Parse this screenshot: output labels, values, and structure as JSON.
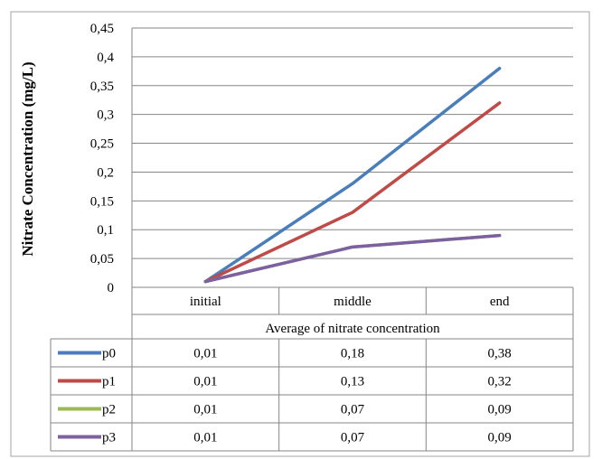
{
  "chart_data": {
    "type": "line",
    "title": "",
    "xlabel": "Average of nitrate concentration",
    "ylabel": "Nitrate Concentration (mg/L)",
    "categories": [
      "initial",
      "middle",
      "end"
    ],
    "ylim": [
      0,
      0.45
    ],
    "yticks": [
      "0",
      "0,05",
      "0,1",
      "0,15",
      "0,2",
      "0,25",
      "0,3",
      "0,35",
      "0,4",
      "0,45"
    ],
    "grid": true,
    "legend": "data-table",
    "series": [
      {
        "name": "p0",
        "color": "#4a7ebb",
        "values": [
          0.01,
          0.18,
          0.38
        ],
        "labels": [
          "0,01",
          "0,18",
          "0,38"
        ]
      },
      {
        "name": "p1",
        "color": "#be4b48",
        "values": [
          0.01,
          0.13,
          0.32
        ],
        "labels": [
          "0,01",
          "0,13",
          "0,32"
        ]
      },
      {
        "name": "p2",
        "color": "#98b954",
        "values": [
          0.01,
          0.07,
          0.09
        ],
        "labels": [
          "0,01",
          "0,07",
          "0,09"
        ]
      },
      {
        "name": "p3",
        "color": "#7d60a0",
        "values": [
          0.01,
          0.07,
          0.09
        ],
        "labels": [
          "0,01",
          "0,07",
          "0,09"
        ]
      }
    ]
  }
}
